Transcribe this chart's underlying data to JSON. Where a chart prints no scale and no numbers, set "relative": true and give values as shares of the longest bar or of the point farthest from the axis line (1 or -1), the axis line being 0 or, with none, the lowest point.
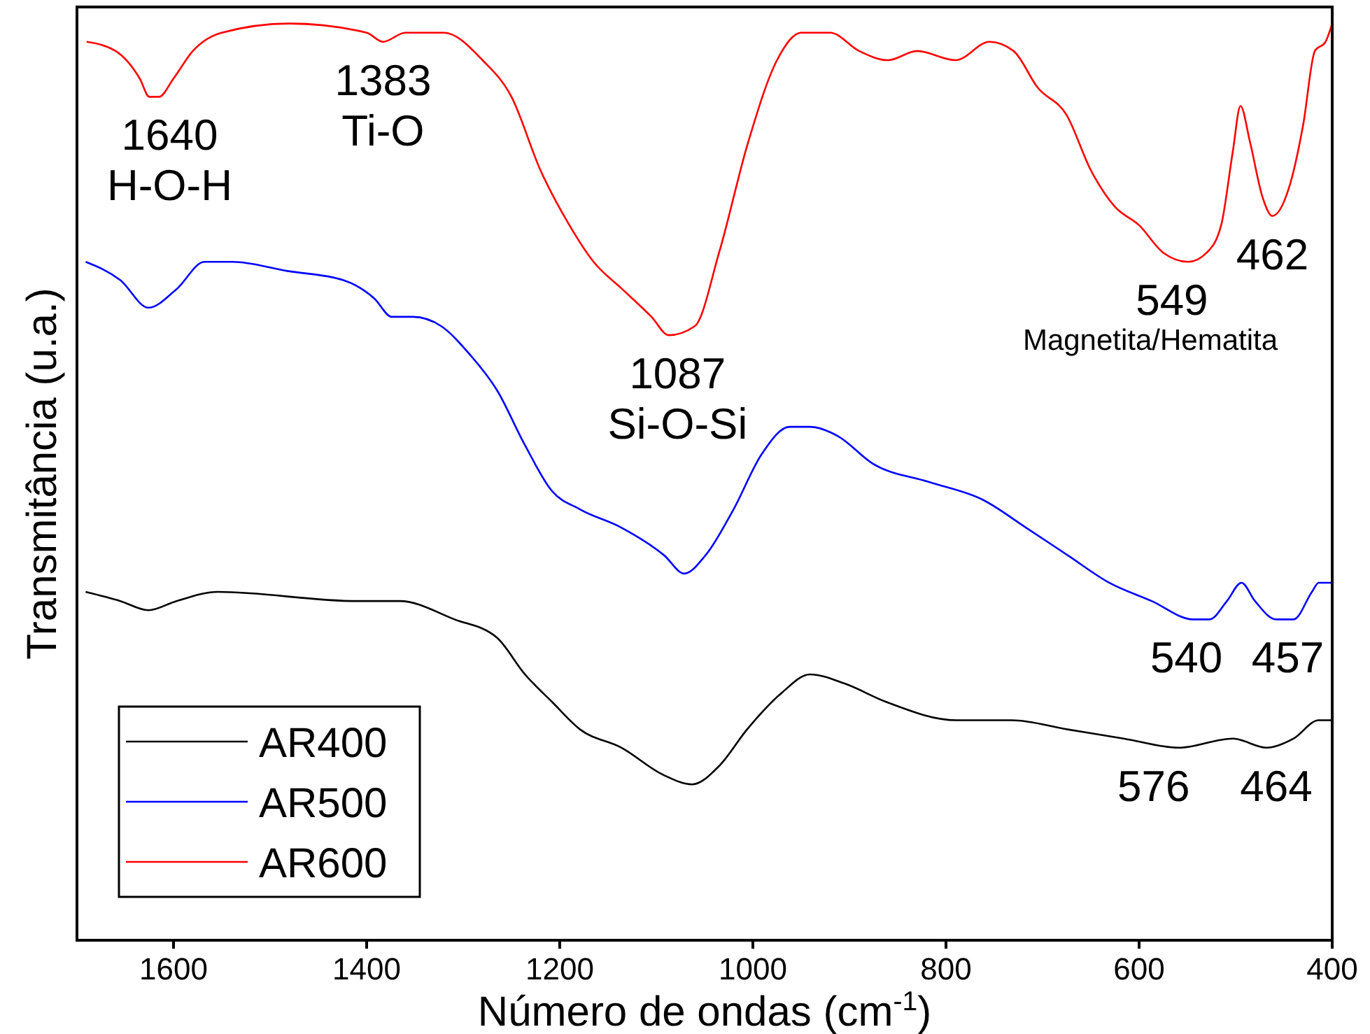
{
  "chart_data": {
    "type": "line",
    "xlabel": "Número de ondas (cm$^{-1}$)",
    "ylabel": "Transmitância (u.a.)",
    "relative": true,
    "xlim": [
      1700,
      400
    ],
    "xticks": [
      1600,
      1400,
      1200,
      1000,
      800,
      600,
      400
    ],
    "legend": "bottom left",
    "grid": false,
    "series": [
      {
        "name": "AR400",
        "color": "#000000",
        "x": [
          1691,
          1655,
          1626,
          1597,
          1554,
          1410,
          1366,
          1309,
          1265,
          1236,
          1208,
          1179,
          1136,
          1092,
          1063,
          1035,
          1006,
          970,
          941,
          905,
          862,
          789,
          732,
          674,
          616,
          559,
          503,
          468,
          440,
          414,
          400
        ],
        "values": [
          0.38,
          0.37,
          0.36,
          0.37,
          0.38,
          0.37,
          0.37,
          0.35,
          0.33,
          0.29,
          0.26,
          0.23,
          0.21,
          0.18,
          0.17,
          0.19,
          0.23,
          0.27,
          0.29,
          0.28,
          0.26,
          0.24,
          0.24,
          0.23,
          0.22,
          0.21,
          0.22,
          0.21,
          0.22,
          0.24,
          0.24
        ]
      },
      {
        "name": "AR500",
        "color": "#0000ff",
        "x": [
          1691,
          1655,
          1626,
          1597,
          1568,
          1539,
          1482,
          1424,
          1392,
          1374,
          1352,
          1323,
          1294,
          1265,
          1236,
          1208,
          1179,
          1136,
          1092,
          1071,
          1049,
          1020,
          991,
          962,
          941,
          912,
          876,
          818,
          761,
          717,
          674,
          631,
          587,
          544,
          527,
          509,
          494,
          480,
          458,
          440,
          421,
          414,
          400
        ],
        "values": [
          0.74,
          0.72,
          0.69,
          0.71,
          0.74,
          0.74,
          0.73,
          0.72,
          0.7,
          0.68,
          0.68,
          0.67,
          0.64,
          0.6,
          0.54,
          0.49,
          0.47,
          0.45,
          0.42,
          0.4,
          0.42,
          0.47,
          0.53,
          0.56,
          0.56,
          0.55,
          0.52,
          0.5,
          0.48,
          0.45,
          0.42,
          0.39,
          0.37,
          0.35,
          0.35,
          0.37,
          0.39,
          0.37,
          0.35,
          0.35,
          0.38,
          0.39,
          0.39
        ]
      },
      {
        "name": "AR600",
        "color": "#ff0000",
        "x": [
          1690,
          1660,
          1635,
          1625,
          1615,
          1600,
          1580,
          1550,
          1480,
          1400,
          1383,
          1360,
          1320,
          1280,
          1250,
          1220,
          1190,
          1165,
          1135,
          1105,
          1087,
          1060,
          1035,
          1005,
          975,
          950,
          920,
          890,
          860,
          830,
          790,
          755,
          730,
          705,
          675,
          650,
          625,
          600,
          575,
          549,
          530,
          515,
          503,
          495,
          485,
          472,
          462,
          445,
          430,
          418,
          407,
          400
        ],
        "values": [
          0.98,
          0.97,
          0.94,
          0.92,
          0.92,
          0.94,
          0.97,
          0.99,
          1.0,
          0.99,
          0.98,
          0.99,
          0.99,
          0.96,
          0.92,
          0.84,
          0.78,
          0.74,
          0.71,
          0.68,
          0.66,
          0.67,
          0.75,
          0.87,
          0.96,
          0.99,
          0.99,
          0.97,
          0.96,
          0.97,
          0.96,
          0.98,
          0.97,
          0.93,
          0.9,
          0.84,
          0.8,
          0.78,
          0.75,
          0.74,
          0.75,
          0.78,
          0.86,
          0.91,
          0.87,
          0.81,
          0.79,
          0.82,
          0.89,
          0.97,
          0.98,
          1.0
        ]
      }
    ],
    "annotations": [
      {
        "text": "1640\nH-O-H",
        "x": 1604,
        "y": 0.92
      },
      {
        "text": "1383\nTi-O",
        "x": 1383,
        "y": 0.98
      },
      {
        "text": "1087\nSi-O-Si",
        "x": 1078,
        "y": 0.66
      },
      {
        "text": "549",
        "x": 566,
        "y": 0.74
      },
      {
        "text": "462",
        "x": 462,
        "y": 0.79
      },
      {
        "text": "540",
        "x": 551,
        "y": 0.35
      },
      {
        "text": "457",
        "x": 446,
        "y": 0.35
      },
      {
        "text": "576",
        "x": 585,
        "y": 0.21
      },
      {
        "text": "464",
        "x": 458,
        "y": 0.21
      },
      "Magnetita/Hematita"
    ]
  }
}
